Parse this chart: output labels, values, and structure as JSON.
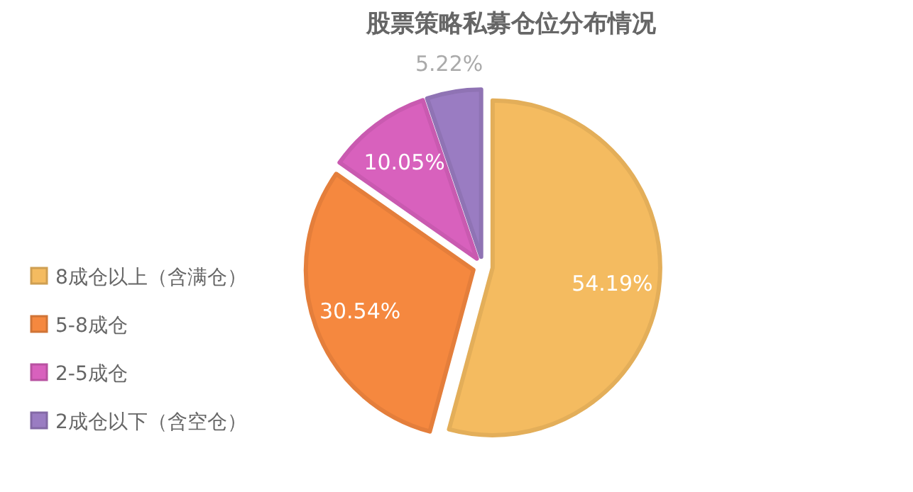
{
  "chart_data": {
    "type": "pie",
    "title": "股票策略私募仓位分布情况",
    "categories": [
      "8成仓以上（含满仓）",
      "5-8成仓",
      "2-5成仓",
      "2成仓以下（含空仓）"
    ],
    "values": [
      54.19,
      30.54,
      10.05,
      5.22
    ],
    "colors": [
      "#f4bb60",
      "#f5883f",
      "#d861bd",
      "#9a7cc2"
    ],
    "value_labels": [
      "54.19%",
      "30.54%",
      "10.05%",
      "5.22%"
    ],
    "legend": "left"
  }
}
